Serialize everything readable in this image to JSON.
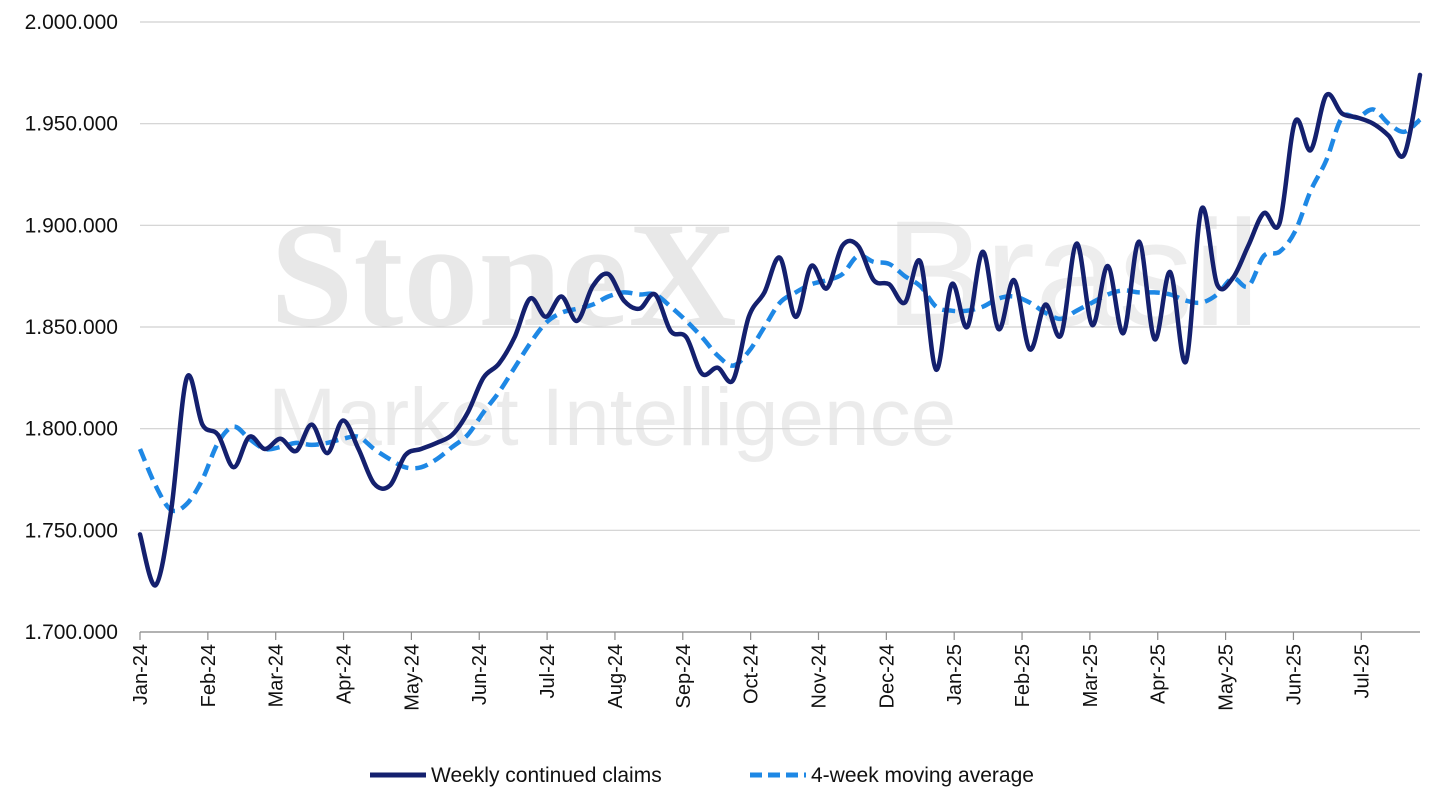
{
  "watermark": {
    "brand": "StoneX",
    "suffix": "Brasil",
    "tagline": "Market Intelligence"
  },
  "chart_data": {
    "type": "line",
    "title": "",
    "xlabel": "",
    "ylabel": "",
    "ylim": [
      1700000,
      2000000
    ],
    "y_ticks": [
      1700000,
      1750000,
      1800000,
      1850000,
      1900000,
      1950000,
      2000000
    ],
    "y_tick_labels": [
      "1.700.000",
      "1.750.000",
      "1.800.000",
      "1.850.000",
      "1.900.000",
      "1.950.000",
      "2.000.000"
    ],
    "x_tick_labels": [
      "Jan-24",
      "Feb-24",
      "Mar-24",
      "Apr-24",
      "May-24",
      "Jun-24",
      "Jul-24",
      "Aug-24",
      "Sep-24",
      "Oct-24",
      "Nov-24",
      "Dec-24",
      "Jan-25",
      "Feb-25",
      "Mar-25",
      "Apr-25",
      "May-25",
      "Jun-25",
      "Jul-25"
    ],
    "grid": "horizontal",
    "legend_position": "bottom",
    "x_unit": "weeks since Jan-24",
    "series": [
      {
        "name": "Weekly continued claims",
        "color": "#14206e",
        "dash": "solid",
        "values": [
          1748000,
          1723000,
          1760000,
          1825000,
          1802000,
          1797000,
          1781000,
          1796000,
          1790000,
          1795000,
          1789000,
          1802000,
          1788000,
          1804000,
          1790000,
          1773000,
          1772000,
          1787000,
          1790000,
          1793000,
          1797000,
          1808000,
          1825000,
          1832000,
          1845000,
          1864000,
          1855000,
          1865000,
          1853000,
          1870000,
          1876000,
          1863000,
          1859000,
          1866000,
          1848000,
          1845000,
          1827000,
          1830000,
          1824000,
          1855000,
          1867000,
          1884000,
          1855000,
          1880000,
          1869000,
          1890000,
          1890000,
          1873000,
          1871000,
          1862000,
          1882000,
          1829000,
          1871000,
          1850000,
          1887000,
          1849000,
          1873000,
          1839000,
          1861000,
          1846000,
          1891000,
          1851000,
          1880000,
          1847000,
          1892000,
          1844000,
          1877000,
          1833000,
          1908000,
          1871000,
          1874000,
          1890000,
          1906000,
          1901000,
          1951000,
          1937000,
          1964000,
          1955000,
          1953000,
          1950000,
          1944000,
          1935000,
          1974000
        ]
      },
      {
        "name": "4-week moving average",
        "color": "#1e88e5",
        "dash": "dashed",
        "values": [
          1790000,
          1772000,
          1760000,
          1763000,
          1775000,
          1793000,
          1801000,
          1795000,
          1790000,
          1791000,
          1793000,
          1792000,
          1793000,
          1795000,
          1796000,
          1790000,
          1785000,
          1781000,
          1781000,
          1785000,
          1791000,
          1797000,
          1808000,
          1818000,
          1830000,
          1842000,
          1852000,
          1857000,
          1859000,
          1861000,
          1865000,
          1867000,
          1866000,
          1866000,
          1860000,
          1853000,
          1845000,
          1836000,
          1831000,
          1838000,
          1850000,
          1862000,
          1867000,
          1871000,
          1873000,
          1876000,
          1885000,
          1882000,
          1881000,
          1875000,
          1870000,
          1860000,
          1858000,
          1858000,
          1860000,
          1864000,
          1865000,
          1862000,
          1857000,
          1854000,
          1858000,
          1862000,
          1866000,
          1868000,
          1867000,
          1867000,
          1866000,
          1863000,
          1862000,
          1866000,
          1874000,
          1870000,
          1885000,
          1887000,
          1897000,
          1917000,
          1932000,
          1953000,
          1953000,
          1957000,
          1950000,
          1946000,
          1952000
        ]
      }
    ]
  }
}
